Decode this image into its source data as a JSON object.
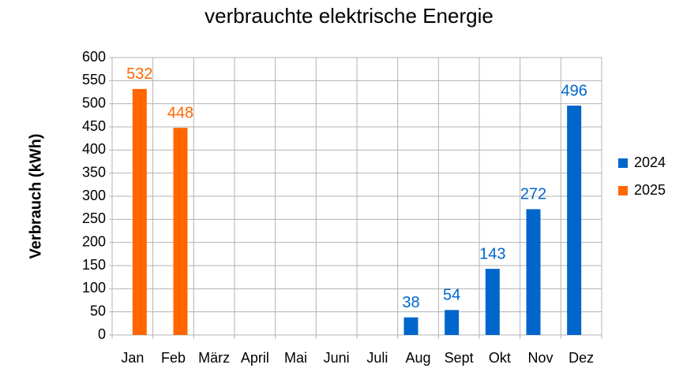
{
  "chart_data": {
    "type": "bar",
    "title": "verbrauchte elektrische Energie",
    "y_label": "Verbrauch (kWh)",
    "categories": [
      "Jan",
      "Feb",
      "März",
      "April",
      "Mai",
      "Juni",
      "Juli",
      "Aug",
      "Sept",
      "Okt",
      "Nov",
      "Dez"
    ],
    "series": [
      {
        "name": "2024",
        "color": "#0066cc",
        "values": [
          null,
          null,
          null,
          null,
          null,
          null,
          null,
          38,
          54,
          143,
          272,
          496
        ]
      },
      {
        "name": "2025",
        "color": "#ff6600",
        "values": [
          532,
          448,
          null,
          null,
          null,
          null,
          null,
          null,
          null,
          null,
          null,
          null
        ]
      }
    ],
    "ylim": [
      0,
      600
    ],
    "yticks": [
      0,
      50,
      100,
      150,
      200,
      250,
      300,
      350,
      400,
      450,
      500,
      550,
      600
    ],
    "grid": true,
    "legend": "right"
  }
}
